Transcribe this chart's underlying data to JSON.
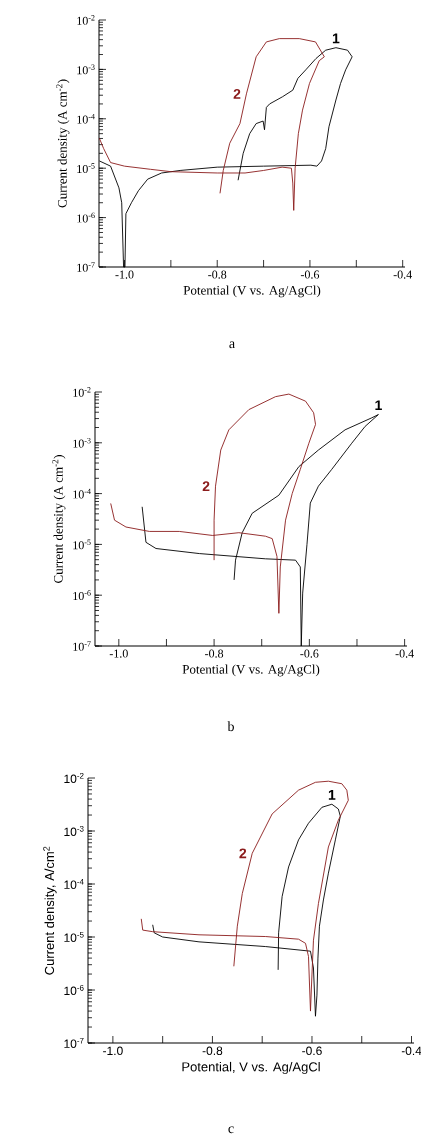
{
  "chart_data": [
    {
      "type": "line",
      "xlabel": "Potential (V vs. Ag/AgCl)",
      "ylabel": "Current density (A cm$^{-2}$)",
      "log": "y",
      "xlim": [
        -1.055,
        -0.395
      ],
      "ylim": [
        1e-07,
        0.01
      ],
      "xticks": [
        {
          "value": -1.0,
          "label": "-1.0"
        },
        {
          "value": -0.9,
          "label": null
        },
        {
          "value": -0.8,
          "label": "-0.8"
        },
        {
          "value": -0.7,
          "label": null
        },
        {
          "value": -0.6,
          "label": "-0.6"
        },
        {
          "value": -0.5,
          "label": null
        },
        {
          "value": -0.4,
          "label": "-0.4"
        }
      ],
      "yticks": [
        {
          "value": 1e-07,
          "label": "10$^{-7}$"
        },
        {
          "value": 1e-06,
          "label": "10$^{-6}$"
        },
        {
          "value": 1e-05,
          "label": "10$^{-5}$"
        },
        {
          "value": 0.0001,
          "label": "10$^{-4}$"
        },
        {
          "value": 0.001,
          "label": "10$^{-3}$"
        },
        {
          "value": 0.01,
          "label": "10$^{-2}$"
        }
      ],
      "series": [
        {
          "name": "1",
          "color": "#000000",
          "x": [
            -1.054,
            -1.03,
            -1.012,
            -1.006,
            -1.002,
            -0.999,
            -0.997,
            -0.985,
            -0.97,
            -0.95,
            -0.92,
            -0.88,
            -0.8,
            -0.7,
            -0.598,
            -0.585,
            -0.575,
            -0.566,
            -0.559,
            -0.544,
            -0.534,
            -0.523,
            -0.509,
            -0.519,
            -0.544,
            -0.566,
            -0.587,
            -0.609,
            -0.626,
            -0.637,
            -0.659,
            -0.687,
            -0.694,
            -0.698,
            -0.701,
            -0.716,
            -0.73,
            -0.744,
            -0.755
          ],
          "values": [
            1.4e-05,
            1.1e-05,
            4e-06,
            2e-06,
            1e-07,
            1e-07,
            1.2e-06,
            2e-06,
            3.5e-06,
            6e-06,
            8e-06,
            9e-06,
            1.05e-05,
            1.1e-05,
            1.15e-05,
            1.1e-05,
            1.4e-05,
            2.5e-05,
            6.9e-05,
            0.00024,
            0.00052,
            0.00098,
            0.0018,
            0.00245,
            0.00275,
            0.00245,
            0.00166,
            0.00098,
            0.00066,
            0.00038,
            0.00028,
            0.0002,
            0.00017,
            6e-05,
            9e-05,
            8e-05,
            5e-05,
            2e-05,
            5.7e-06
          ]
        },
        {
          "name": "2",
          "color": "#8b1c1c",
          "x": [
            -1.054,
            -1.045,
            -1.03,
            -1.0,
            -0.944,
            -0.9,
            -0.8,
            -0.74,
            -0.7,
            -0.66,
            -0.64,
            -0.637,
            -0.635,
            -0.632,
            -0.625,
            -0.616,
            -0.601,
            -0.58,
            -0.569,
            -0.588,
            -0.623,
            -0.666,
            -0.694,
            -0.716,
            -0.737,
            -0.751,
            -0.773,
            -0.787,
            -0.794
          ],
          "values": [
            4e-05,
            2.5e-05,
            1.3e-05,
            1.1e-05,
            9.5e-06,
            8.5e-06,
            8e-06,
            8e-06,
            9e-06,
            1.05e-05,
            1e-05,
            5e-06,
            1.4e-06,
            1e-05,
            5e-05,
            0.00015,
            0.00052,
            0.0015,
            0.0018,
            0.0036,
            0.0042,
            0.0042,
            0.0036,
            0.0018,
            0.00032,
            8e-05,
            3.2e-05,
            9e-06,
            3.1e-06
          ]
        }
      ],
      "annotations": [
        "a"
      ]
    },
    {
      "type": "line",
      "xlabel": "Potential (V vs. Ag/AgCl)",
      "ylabel": "Current density (A cm$^{-2}$)",
      "log": "y",
      "xlim": [
        -1.05,
        -0.395
      ],
      "ylim": [
        1e-07,
        0.01
      ],
      "xticks": [
        {
          "value": -1.0,
          "label": "-1.0"
        },
        {
          "value": -0.9,
          "label": null
        },
        {
          "value": -0.8,
          "label": "-0.8"
        },
        {
          "value": -0.7,
          "label": null
        },
        {
          "value": -0.6,
          "label": "-0.6"
        },
        {
          "value": -0.5,
          "label": null
        },
        {
          "value": -0.4,
          "label": "-0.4"
        }
      ],
      "yticks": [
        {
          "value": 1e-07,
          "label": "10$^{-7}$"
        },
        {
          "value": 1e-06,
          "label": "10$^{-6}$"
        },
        {
          "value": 1e-05,
          "label": "10$^{-5}$"
        },
        {
          "value": 0.0001,
          "label": "10$^{-4}$"
        },
        {
          "value": 0.001,
          "label": "10$^{-3}$"
        },
        {
          "value": 0.01,
          "label": "10$^{-2}$"
        }
      ],
      "series": [
        {
          "name": "1",
          "color": "#000000",
          "x": [
            -0.951,
            -0.943,
            -0.922,
            -0.831,
            -0.692,
            -0.629,
            -0.619,
            -0.617,
            -0.614,
            -0.605,
            -0.598,
            -0.581,
            -0.553,
            -0.511,
            -0.483,
            -0.455,
            -0.469,
            -0.525,
            -0.581,
            -0.622,
            -0.664,
            -0.72,
            -0.741,
            -0.755,
            -0.758
          ],
          "values": [
            5.5e-05,
            1.1e-05,
            8.3e-06,
            6.6e-06,
            5.2e-06,
            4.9e-06,
            3.6e-06,
            1e-07,
            1.1e-06,
            1e-05,
            6.5e-05,
            0.00014,
            0.0003,
            0.00098,
            0.0021,
            0.0036,
            0.0031,
            0.0018,
            0.00072,
            0.00034,
            9.3e-05,
            4.1e-05,
            1.7e-05,
            4.9e-06,
            2e-06
          ]
        },
        {
          "name": "2",
          "color": "#8b1c1c",
          "x": [
            -1.017,
            -1.009,
            -0.985,
            -0.936,
            -0.873,
            -0.803,
            -0.748,
            -0.692,
            -0.678,
            -0.668,
            -0.664,
            -0.661,
            -0.65,
            -0.636,
            -0.619,
            -0.601,
            -0.587,
            -0.591,
            -0.608,
            -0.643,
            -0.671,
            -0.727,
            -0.769,
            -0.786,
            -0.797,
            -0.8,
            -0.8
          ],
          "values": [
            6.4e-05,
            3e-05,
            2.2e-05,
            1.8e-05,
            1.8e-05,
            1.5e-05,
            1.7e-05,
            1.45e-05,
            1.3e-05,
            5.8e-06,
            4.4e-07,
            3.6e-06,
            3e-05,
            0.0001,
            0.0003,
            0.00098,
            0.0023,
            0.0039,
            0.0066,
            0.0091,
            0.0081,
            0.0045,
            0.0018,
            0.00072,
            0.00014,
            3e-05,
            4.9e-06
          ]
        }
      ],
      "annotations": [
        "b"
      ]
    },
    {
      "type": "line",
      "xlabel": "Potential, V vs. Ag/AgCl",
      "ylabel": "Current density, A/cm$^{2}$",
      "log": "y",
      "xlim": [
        -1.05,
        -0.395
      ],
      "ylim": [
        1e-07,
        0.01
      ],
      "xticks": [
        {
          "value": -1.0,
          "label": "-1.0"
        },
        {
          "value": -0.9,
          "label": null
        },
        {
          "value": -0.8,
          "label": "-0.8"
        },
        {
          "value": -0.7,
          "label": null
        },
        {
          "value": -0.6,
          "label": "-0.6"
        },
        {
          "value": -0.5,
          "label": null
        },
        {
          "value": -0.4,
          "label": "-0.4"
        }
      ],
      "yticks": [
        {
          "value": 1e-07,
          "label": "10$^{-7}$"
        },
        {
          "value": 1e-06,
          "label": "10$^{-6}$"
        },
        {
          "value": 1e-05,
          "label": "10$^{-5}$"
        },
        {
          "value": 0.0001,
          "label": "10$^{-4}$"
        },
        {
          "value": 0.001,
          "label": "10$^{-3}$"
        },
        {
          "value": 0.01,
          "label": "10$^{-2}$"
        }
      ],
      "series": [
        {
          "name": "1",
          "color": "#000000",
          "x": [
            -0.92,
            -0.917,
            -0.9,
            -0.827,
            -0.693,
            -0.603,
            -0.597,
            -0.593,
            -0.59,
            -0.588,
            -0.585,
            -0.577,
            -0.567,
            -0.553,
            -0.543,
            -0.547,
            -0.56,
            -0.58,
            -0.607,
            -0.627,
            -0.647,
            -0.66,
            -0.667,
            -0.668
          ],
          "values": [
            1.7e-05,
            1.2e-05,
            1e-05,
            8.1e-06,
            6.6e-06,
            5.4e-06,
            2.6e-06,
            3.2e-07,
            8e-07,
            4e-06,
            1.6e-05,
            5e-05,
            0.00016,
            0.00068,
            0.0019,
            0.0026,
            0.0032,
            0.0028,
            0.0014,
            0.00068,
            0.00021,
            5.8e-05,
            1.2e-05,
            2.4e-06
          ]
        },
        {
          "name": "2",
          "color": "#8b1c1c",
          "x": [
            -0.943,
            -0.94,
            -0.92,
            -0.827,
            -0.693,
            -0.627,
            -0.613,
            -0.607,
            -0.603,
            -0.6,
            -0.597,
            -0.587,
            -0.567,
            -0.547,
            -0.527,
            -0.53,
            -0.54,
            -0.567,
            -0.593,
            -0.627,
            -0.68,
            -0.72,
            -0.74,
            -0.75,
            -0.757
          ],
          "values": [
            2.2e-05,
            1.35e-05,
            1.26e-05,
            1.1e-05,
            1.02e-05,
            9.1e-06,
            7.6e-06,
            4.3e-06,
            4e-07,
            2e-06,
            8.7e-06,
            4.3e-05,
            0.0005,
            0.0016,
            0.0038,
            0.0059,
            0.0078,
            0.0087,
            0.0083,
            0.0059,
            0.0021,
            0.00038,
            6.6e-05,
            1.6e-05,
            2.8e-06
          ]
        }
      ],
      "annotations": [
        "c"
      ]
    }
  ]
}
